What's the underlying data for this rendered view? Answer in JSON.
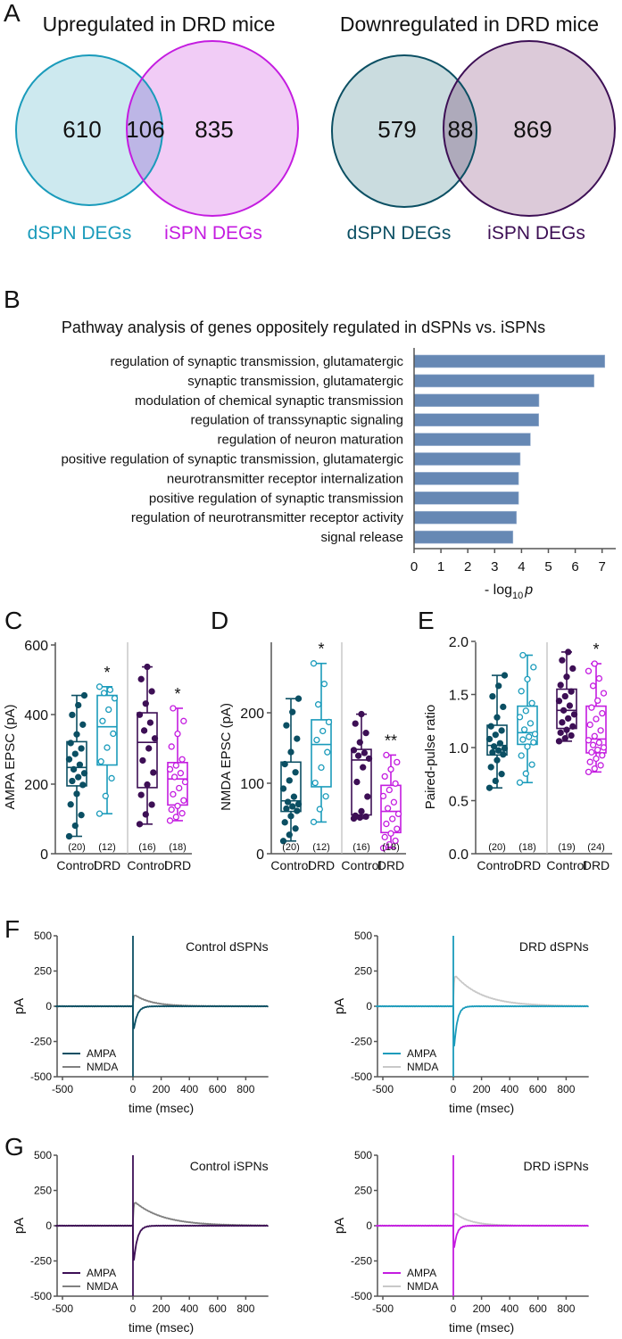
{
  "panels": {
    "A": "A",
    "B": "B",
    "C": "C",
    "D": "D",
    "E": "E",
    "F": "F",
    "G": "G"
  },
  "colors": {
    "control_dspn": "#0b4f63",
    "drd_dspn": "#1a9bbb",
    "control_ispn": "#3d0f55",
    "drd_ispn": "#c41ce0",
    "nmda_control": "#808080",
    "nmda_drd": "#c8c8c8",
    "bar": "#6688b4",
    "venn_up_d_fill": "#cde9ef",
    "venn_up_i_fill": "#f1ccf6",
    "venn_up_overlap": "#bdb6e6",
    "venn_down_d_fill": "#cadcdf",
    "venn_down_i_fill": "#dccad9",
    "venn_down_overlap": "#aeaabb"
  },
  "chart_data": [
    {
      "type": "venn",
      "id": "up",
      "title": "Upregulated in DRD mice",
      "sets": [
        {
          "label": "dSPN DEGs",
          "count": "610"
        },
        {
          "label": "iSPN DEGs",
          "count": "835"
        }
      ],
      "overlap": "106"
    },
    {
      "type": "venn",
      "id": "down",
      "title": "Downregulated in DRD mice",
      "sets": [
        {
          "label": "dSPN DEGs",
          "count": "579"
        },
        {
          "label": "iSPN DEGs",
          "count": "869"
        }
      ],
      "overlap": "88"
    },
    {
      "type": "bar",
      "orientation": "horizontal",
      "title": "Pathway analysis of genes oppositely regulated in dSPNs vs. iSPNs",
      "categories": [
        "regulation of synaptic transmission, glutamatergic",
        "synaptic transmission, glutamatergic",
        "modulation of chemical synaptic transmission",
        "regulation of transsynaptic signaling",
        "regulation of neuron maturation",
        "positive regulation of synaptic transmission, glutamatergic",
        "neurotransmitter receptor internalization",
        "positive regulation of synaptic transmission",
        "regulation of neurotransmitter receptor activity",
        "signal release"
      ],
      "values": [
        7.1,
        6.7,
        4.65,
        4.64,
        4.33,
        3.95,
        3.89,
        3.89,
        3.81,
        3.68
      ],
      "xlabel": {
        "prefix": "- log",
        "sub": "10",
        "var": "p"
      },
      "xlim": [
        0,
        7
      ],
      "xticks": [
        "0",
        "1",
        "2",
        "3",
        "4",
        "5",
        "6",
        "7"
      ]
    },
    {
      "type": "box",
      "panel": "C",
      "ylabel": "AMPA EPSC (pA)",
      "ylim": [
        0,
        600
      ],
      "yticks": [
        "0",
        "200",
        "400",
        "600"
      ],
      "groups": [
        {
          "category": "Control",
          "cell": "dSPN",
          "n": 20,
          "n_label": "(20)",
          "sig": "",
          "min": 50,
          "q1": 195,
          "median": 248,
          "q3": 322,
          "max": 455
        },
        {
          "category": "DRD",
          "cell": "dSPN",
          "n": 12,
          "n_label": "(12)",
          "sig": "*",
          "min": 115,
          "q1": 255,
          "median": 365,
          "q3": 455,
          "max": 480
        },
        {
          "category": "Control",
          "cell": "iSPN",
          "n": 16,
          "n_label": "(16)",
          "sig": "",
          "min": 85,
          "q1": 190,
          "median": 320,
          "q3": 405,
          "max": 537
        },
        {
          "category": "DRD",
          "cell": "iSPN",
          "n": 18,
          "n_label": "(18)",
          "sig": "*",
          "min": 95,
          "q1": 140,
          "median": 215,
          "q3": 262,
          "max": 418
        }
      ]
    },
    {
      "type": "box",
      "panel": "D",
      "ylabel": "NMDA EPSC (pA)",
      "ylim": [
        0,
        300
      ],
      "yticks": [
        "0",
        "100",
        "200"
      ],
      "groups": [
        {
          "category": "Control",
          "cell": "dSPN",
          "n": 20,
          "n_label": "(20)",
          "sig": "",
          "min": 18,
          "q1": 60,
          "median": 75,
          "q3": 130,
          "max": 220
        },
        {
          "category": "DRD",
          "cell": "dSPN",
          "n": 12,
          "n_label": "(12)",
          "sig": "*",
          "min": 45,
          "q1": 95,
          "median": 155,
          "q3": 190,
          "max": 270
        },
        {
          "category": "Control",
          "cell": "iSPN",
          "n": 16,
          "n_label": "(16)",
          "sig": "",
          "min": 50,
          "q1": 55,
          "median": 133,
          "q3": 148,
          "max": 198
        },
        {
          "category": "DRD",
          "cell": "iSPN",
          "n": 18,
          "n_label": "(18)",
          "sig": "**",
          "min": 8,
          "q1": 30,
          "median": 60,
          "q3": 97,
          "max": 140
        }
      ]
    },
    {
      "type": "box",
      "panel": "E",
      "ylabel": "Paired-pulse ratio",
      "ylim": [
        0,
        2
      ],
      "yticks": [
        "0.0",
        "0.5",
        "1.0",
        "1.5",
        "2.0"
      ],
      "groups": [
        {
          "category": "Control",
          "cell": "dSPN",
          "n": 20,
          "n_label": "(20)",
          "sig": "",
          "min": 0.62,
          "q1": 0.93,
          "median": 1.02,
          "q3": 1.21,
          "max": 1.68
        },
        {
          "category": "DRD",
          "cell": "dSPN",
          "n": 18,
          "n_label": "(18)",
          "sig": "",
          "min": 0.67,
          "q1": 1.03,
          "median": 1.14,
          "q3": 1.39,
          "max": 1.87
        },
        {
          "category": "Control",
          "cell": "iSPN",
          "n": 19,
          "n_label": "(19)",
          "sig": "",
          "min": 1.06,
          "q1": 1.18,
          "median": 1.35,
          "q3": 1.55,
          "max": 1.9
        },
        {
          "category": "DRD",
          "cell": "iSPN",
          "n": 24,
          "n_label": "(24)",
          "sig": "*",
          "min": 0.77,
          "q1": 0.95,
          "median": 1.08,
          "q3": 1.39,
          "max": 1.79
        }
      ]
    },
    {
      "type": "line",
      "panel": "F",
      "title": "Control dSPNs",
      "xlabel": "time (msec)",
      "ylabel": "pA",
      "xlim": [
        -550,
        960
      ],
      "ylim": [
        -500,
        500
      ],
      "xticks": [
        "-500",
        "0",
        "200",
        "400",
        "600",
        "800"
      ],
      "yticks": [
        "-500",
        "-250",
        "0",
        "250",
        "500"
      ],
      "series": [
        {
          "name": "AMPA",
          "peak": -215,
          "tau_ms": 25,
          "color_key": "control_dspn"
        },
        {
          "name": "NMDA",
          "peak": 90,
          "tau_ms": 120,
          "color_key": "nmda_control"
        }
      ]
    },
    {
      "type": "line",
      "panel": "F",
      "title": "DRD dSPNs",
      "xlabel": "time (msec)",
      "ylabel": "pA",
      "xlim": [
        -550,
        960
      ],
      "ylim": [
        -500,
        500
      ],
      "xticks": [
        "-500",
        "0",
        "200",
        "400",
        "600",
        "800"
      ],
      "yticks": [
        "-500",
        "-250",
        "0",
        "250",
        "500"
      ],
      "series": [
        {
          "name": "AMPA",
          "peak": -390,
          "tau_ms": 22,
          "color_key": "drd_dspn"
        },
        {
          "name": "NMDA",
          "peak": 235,
          "tau_ms": 190,
          "color_key": "nmda_drd"
        }
      ]
    },
    {
      "type": "line",
      "panel": "G",
      "title": "Control iSPNs",
      "xlabel": "time (msec)",
      "ylabel": "pA",
      "xlim": [
        -550,
        960
      ],
      "ylim": [
        -500,
        500
      ],
      "xticks": [
        "-500",
        "0",
        "200",
        "400",
        "600",
        "800"
      ],
      "yticks": [
        "-500",
        "-250",
        "0",
        "250",
        "500"
      ],
      "series": [
        {
          "name": "AMPA",
          "peak": -330,
          "tau_ms": 25,
          "color_key": "control_ispn"
        },
        {
          "name": "NMDA",
          "peak": 180,
          "tau_ms": 200,
          "color_key": "nmda_control"
        }
      ]
    },
    {
      "type": "line",
      "panel": "G",
      "title": "DRD iSPNs",
      "xlabel": "time (msec)",
      "ylabel": "pA",
      "xlim": [
        -550,
        960
      ],
      "ylim": [
        -500,
        500
      ],
      "xticks": [
        "-500",
        "0",
        "200",
        "400",
        "600",
        "800"
      ],
      "yticks": [
        "-500",
        "-250",
        "0",
        "250",
        "500"
      ],
      "series": [
        {
          "name": "AMPA",
          "peak": -220,
          "tau_ms": 20,
          "color_key": "drd_ispn"
        },
        {
          "name": "NMDA",
          "peak": 100,
          "tau_ms": 110,
          "color_key": "nmda_drd"
        }
      ]
    }
  ]
}
